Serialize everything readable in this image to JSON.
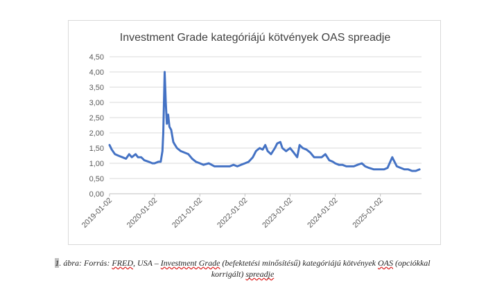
{
  "chart_data": {
    "type": "line",
    "title": "Investment Grade kategóriájú kötvények OAS spreadje",
    "ylim": [
      0,
      4.5
    ],
    "y_ticks": [
      "0,00",
      "0,50",
      "1,00",
      "1,50",
      "2,00",
      "2,50",
      "3,00",
      "3,50",
      "4,00",
      "4,50"
    ],
    "x_ticks": [
      "2019-01-02",
      "2020-01-02",
      "2021-01-02",
      "2022-01-02",
      "2023-01-02",
      "2024-01-02",
      "2025-01-02"
    ],
    "grid": true,
    "legend": "none",
    "line_color": "#4472c4",
    "series": [
      {
        "x": [
          "2019-01-02",
          "2019-01-20",
          "2019-02-15",
          "2019-03-15",
          "2019-04-15",
          "2019-05-15",
          "2019-06-10",
          "2019-07-01",
          "2019-08-01",
          "2019-08-20",
          "2019-09-15",
          "2019-10-10",
          "2019-11-15",
          "2019-12-15",
          "2020-01-02",
          "2020-02-01",
          "2020-02-20",
          "2020-03-05",
          "2020-03-12",
          "2020-03-20",
          "2020-03-23",
          "2020-04-01",
          "2020-04-10",
          "2020-04-20",
          "2020-05-01",
          "2020-05-15",
          "2020-06-01",
          "2020-06-15",
          "2020-07-01",
          "2020-08-01",
          "2020-09-01",
          "2020-10-01",
          "2020-11-01",
          "2020-12-01",
          "2021-01-02",
          "2021-02-01",
          "2021-03-15",
          "2021-05-01",
          "2021-07-01",
          "2021-09-01",
          "2021-10-01",
          "2021-11-01",
          "2021-12-01",
          "2022-01-02",
          "2022-02-01",
          "2022-03-07",
          "2022-04-01",
          "2022-05-01",
          "2022-05-25",
          "2022-06-15",
          "2022-07-05",
          "2022-08-01",
          "2022-09-01",
          "2022-09-20",
          "2022-10-15",
          "2022-11-01",
          "2022-12-01",
          "2023-01-02",
          "2023-02-01",
          "2023-03-01",
          "2023-03-20",
          "2023-04-15",
          "2023-05-15",
          "2023-06-15",
          "2023-07-15",
          "2023-08-15",
          "2023-09-15",
          "2023-10-15",
          "2023-11-15",
          "2023-12-15",
          "2024-01-02",
          "2024-02-01",
          "2024-03-01",
          "2024-04-01",
          "2024-05-01",
          "2024-06-01",
          "2024-07-01",
          "2024-08-05",
          "2024-09-01",
          "2024-10-01",
          "2024-11-10",
          "2024-12-15",
          "2025-01-02",
          "2025-02-01",
          "2025-03-01",
          "2025-04-08",
          "2025-04-20",
          "2025-05-15",
          "2025-06-15",
          "2025-07-15",
          "2025-08-15",
          "2025-09-15",
          "2025-10-15",
          "2025-11-15"
        ],
        "y": [
          1.6,
          1.45,
          1.3,
          1.25,
          1.2,
          1.15,
          1.3,
          1.2,
          1.3,
          1.2,
          1.2,
          1.1,
          1.05,
          1.0,
          1.0,
          1.05,
          1.05,
          1.4,
          2.0,
          3.5,
          4.0,
          3.0,
          2.3,
          2.6,
          2.2,
          2.1,
          1.7,
          1.6,
          1.5,
          1.4,
          1.35,
          1.3,
          1.15,
          1.05,
          1.0,
          0.95,
          1.0,
          0.9,
          0.9,
          0.9,
          0.95,
          0.9,
          0.95,
          1.0,
          1.05,
          1.2,
          1.4,
          1.5,
          1.45,
          1.6,
          1.4,
          1.3,
          1.5,
          1.65,
          1.7,
          1.5,
          1.4,
          1.5,
          1.35,
          1.2,
          1.6,
          1.5,
          1.45,
          1.35,
          1.2,
          1.2,
          1.2,
          1.3,
          1.1,
          1.05,
          1.0,
          0.95,
          0.95,
          0.9,
          0.9,
          0.9,
          0.95,
          1.0,
          0.9,
          0.85,
          0.8,
          0.8,
          0.8,
          0.8,
          0.85,
          1.2,
          1.1,
          0.9,
          0.85,
          0.8,
          0.8,
          0.75,
          0.75,
          0.8
        ]
      }
    ]
  },
  "caption": {
    "prefix": "1",
    "text1": ". ábra: Forrás: ",
    "source": "FRED",
    "text2": ", USA –  ",
    "ig": "Investment Grade",
    "text3": " (befektetési minősítésű) kategóriájú kötvények ",
    "oas": "OAS",
    "text4": " (opciókkal",
    "line2a": "korrigált) ",
    "line2b": "spreadje"
  }
}
